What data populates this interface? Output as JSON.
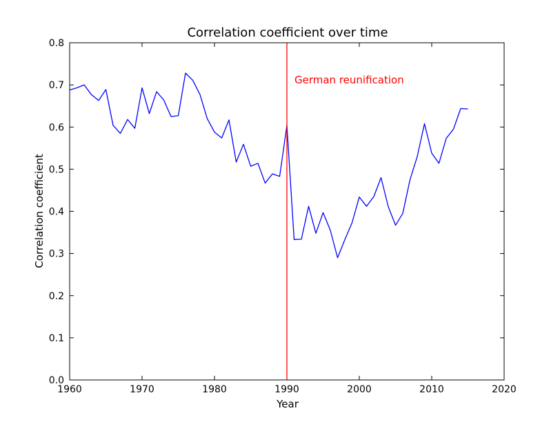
{
  "chart_data": {
    "type": "line",
    "title": "Correlation coefficient over time",
    "xlabel": "Year",
    "ylabel": "Correlation coefficient",
    "xlim": [
      1960,
      2020
    ],
    "ylim": [
      0.0,
      0.8
    ],
    "x_ticks": [
      1960,
      1970,
      1980,
      1990,
      2000,
      2010,
      2020
    ],
    "x_tick_labels": [
      "1960",
      "1970",
      "1980",
      "1990",
      "2000",
      "2010",
      "2020"
    ],
    "y_ticks": [
      0.0,
      0.1,
      0.2,
      0.3,
      0.4,
      0.5,
      0.6,
      0.7,
      0.8
    ],
    "y_tick_labels": [
      "0.0",
      "0.1",
      "0.2",
      "0.3",
      "0.4",
      "0.5",
      "0.6",
      "0.7",
      "0.8"
    ],
    "grid": false,
    "series": [
      {
        "name": "Correlation coefficient",
        "color": "#0000ff",
        "x": [
          1960,
          1961,
          1962,
          1963,
          1964,
          1965,
          1966,
          1967,
          1968,
          1969,
          1970,
          1971,
          1972,
          1973,
          1974,
          1975,
          1976,
          1977,
          1978,
          1979,
          1980,
          1981,
          1982,
          1983,
          1984,
          1985,
          1986,
          1987,
          1988,
          1989,
          1990,
          1991,
          1992,
          1993,
          1994,
          1995,
          1996,
          1997,
          1998,
          1999,
          2000,
          2001,
          2002,
          2003,
          2004,
          2005,
          2006,
          2007,
          2008,
          2009,
          2010,
          2011,
          2012,
          2013,
          2014,
          2015
        ],
        "values": [
          0.688,
          0.693,
          0.7,
          0.677,
          0.663,
          0.689,
          0.604,
          0.585,
          0.618,
          0.597,
          0.693,
          0.632,
          0.684,
          0.664,
          0.625,
          0.627,
          0.728,
          0.711,
          0.677,
          0.62,
          0.588,
          0.574,
          0.617,
          0.517,
          0.559,
          0.507,
          0.514,
          0.467,
          0.489,
          0.483,
          0.604,
          0.333,
          0.334,
          0.412,
          0.348,
          0.397,
          0.355,
          0.29,
          0.333,
          0.373,
          0.434,
          0.412,
          0.435,
          0.48,
          0.411,
          0.367,
          0.395,
          0.475,
          0.53,
          0.608,
          0.538,
          0.514,
          0.573,
          0.595,
          0.644,
          0.643
        ]
      }
    ],
    "annotations": [
      {
        "type": "vline",
        "x": 1990,
        "color": "#ff0000",
        "label": "German reunification"
      }
    ]
  }
}
